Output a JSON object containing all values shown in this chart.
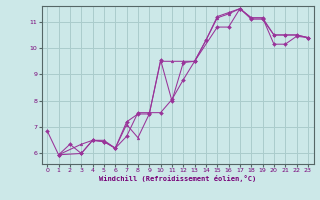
{
  "title": "",
  "xlabel": "Windchill (Refroidissement éolien,°C)",
  "ylabel": "",
  "bg_color": "#cce8e8",
  "line_color": "#993399",
  "grid_color": "#aacccc",
  "xlim": [
    -0.5,
    23.5
  ],
  "ylim": [
    5.6,
    11.6
  ],
  "xticks": [
    0,
    1,
    2,
    3,
    4,
    5,
    6,
    7,
    8,
    9,
    10,
    11,
    12,
    13,
    14,
    15,
    16,
    17,
    18,
    19,
    20,
    21,
    22,
    23
  ],
  "yticks": [
    6,
    7,
    8,
    9,
    10,
    11
  ],
  "series1_x": [
    0,
    1,
    2,
    3,
    4,
    5,
    6,
    7,
    8,
    9,
    10,
    11,
    12,
    13,
    14,
    15,
    16,
    17,
    18,
    19,
    20,
    21,
    22,
    23
  ],
  "series1_y": [
    6.85,
    5.95,
    6.35,
    6.0,
    6.5,
    6.45,
    6.2,
    7.2,
    7.5,
    7.5,
    9.55,
    8.0,
    9.45,
    9.5,
    10.3,
    11.2,
    11.35,
    11.5,
    11.1,
    11.1,
    10.5,
    10.5,
    10.5,
    10.4
  ],
  "series2_x": [
    1,
    3,
    4,
    5,
    6,
    7,
    8,
    9,
    10,
    11,
    12,
    13,
    15,
    16,
    17,
    18,
    19,
    20,
    21,
    22,
    23
  ],
  "series2_y": [
    5.95,
    6.0,
    6.5,
    6.45,
    6.2,
    6.65,
    7.55,
    7.55,
    7.55,
    8.05,
    8.8,
    9.5,
    10.8,
    10.8,
    11.5,
    11.15,
    11.15,
    10.15,
    10.15,
    10.45,
    10.4
  ],
  "series3_x": [
    1,
    3,
    4,
    5,
    6,
    7,
    8,
    9,
    10,
    11,
    12,
    13,
    14,
    15,
    16,
    17,
    18,
    19,
    20,
    21,
    22,
    23
  ],
  "series3_y": [
    5.95,
    6.35,
    6.5,
    6.5,
    6.2,
    7.1,
    6.6,
    7.5,
    9.5,
    9.5,
    9.5,
    9.5,
    10.3,
    11.15,
    11.3,
    11.5,
    11.15,
    11.15,
    10.5,
    10.5,
    10.5,
    10.4
  ]
}
